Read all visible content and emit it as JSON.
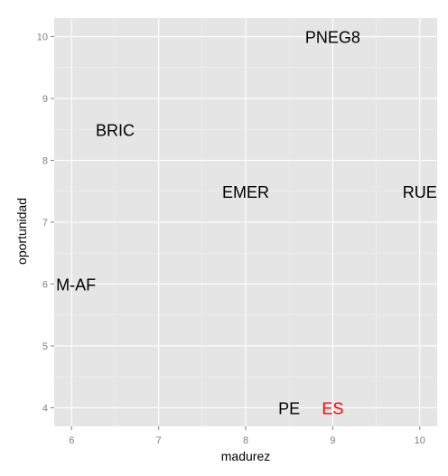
{
  "chart_data": {
    "type": "scatter",
    "xlabel": "madurez",
    "ylabel": "oportunidad",
    "xlim": [
      5.8,
      10.2
    ],
    "ylim": [
      3.7,
      10.3
    ],
    "x_ticks": [
      6,
      7,
      8,
      9,
      10
    ],
    "y_ticks": [
      4,
      5,
      6,
      7,
      8,
      9,
      10
    ],
    "x_tick_labels": [
      "6",
      "7",
      "8",
      "9",
      "10"
    ],
    "y_tick_labels": [
      "4",
      "5",
      "6",
      "7",
      "8",
      "9",
      "10"
    ],
    "grid": true,
    "points": [
      {
        "label": "PNEG8",
        "x": 9.0,
        "y": 10.0,
        "color": "#000000"
      },
      {
        "label": "BRIC",
        "x": 6.5,
        "y": 8.5,
        "color": "#000000"
      },
      {
        "label": "EMER",
        "x": 8.0,
        "y": 7.5,
        "color": "#000000"
      },
      {
        "label": "RUE",
        "x": 10.0,
        "y": 7.5,
        "color": "#000000"
      },
      {
        "label": "M-AF",
        "x": 6.05,
        "y": 6.0,
        "color": "#000000"
      },
      {
        "label": "PE",
        "x": 8.5,
        "y": 4.0,
        "color": "#000000"
      },
      {
        "label": "ES",
        "x": 9.0,
        "y": 4.0,
        "color": "#ff0000"
      }
    ]
  },
  "colors": {
    "panel_background": "#e5e5e5",
    "grid_major": "#ffffff",
    "grid_minor": "#f2f2f2",
    "tick_text": "#7f7f7f",
    "highlight": "#ff0000"
  }
}
